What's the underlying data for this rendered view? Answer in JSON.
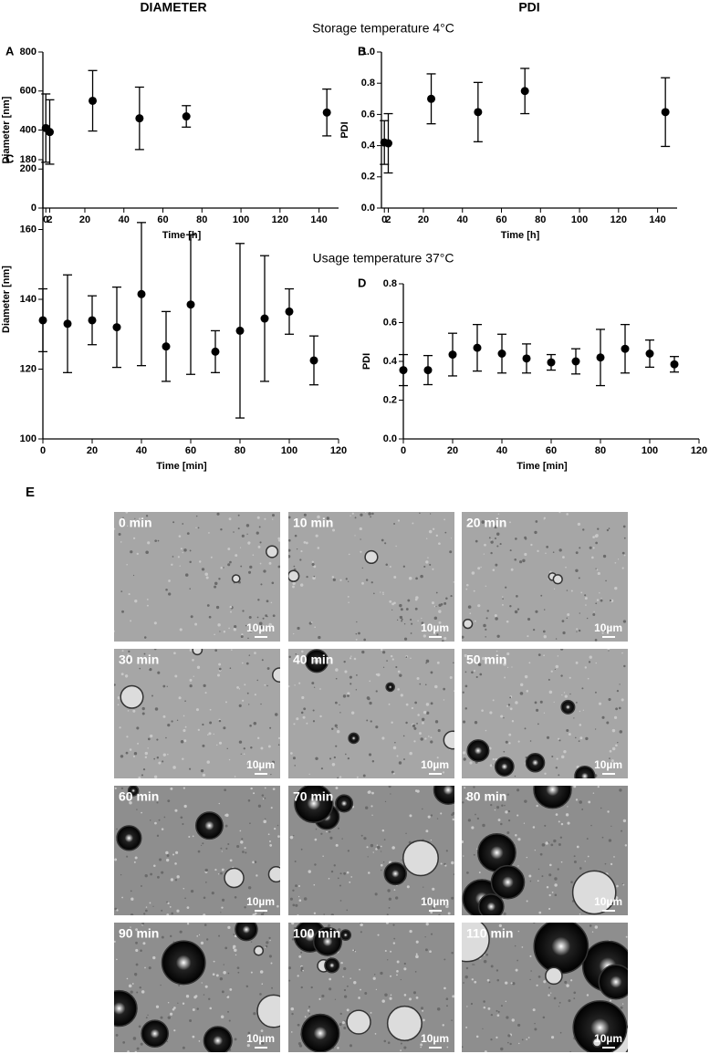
{
  "column_titles": [
    "DIAMETER",
    "PDI"
  ],
  "section_titles": [
    "Storage temperature 4°C",
    "Usage temperature 37°C"
  ],
  "chart_data": [
    {
      "type": "scatter",
      "panel": "A",
      "x_label": "Time [h]",
      "y_label": "Diameter [nm]",
      "xlim": [
        -1.5,
        150
      ],
      "xticks": [
        0,
        2,
        20,
        40,
        60,
        80,
        100,
        120,
        140
      ],
      "ylim": [
        0,
        800
      ],
      "yticks": [
        0,
        200,
        400,
        600,
        800
      ],
      "series": [
        {
          "color": "#000000",
          "x": [
            0,
            2,
            24,
            48,
            72,
            144
          ],
          "values": [
            410,
            390,
            550,
            460,
            470,
            490
          ],
          "errors": [
            175,
            165,
            155,
            160,
            55,
            120
          ]
        }
      ]
    },
    {
      "type": "scatter",
      "panel": "B",
      "x_label": "Time [h]",
      "y_label": "PDI",
      "xlim": [
        -1.5,
        150
      ],
      "xticks": [
        0,
        2,
        20,
        40,
        60,
        80,
        100,
        120,
        140
      ],
      "ylim": [
        0,
        1
      ],
      "yticks": [
        {
          "value": 0,
          "label": "0.0"
        },
        0.2,
        0.4,
        0.6,
        0.8,
        {
          "value": 1,
          "label": "1.0"
        }
      ],
      "series": [
        {
          "color": "#000000",
          "x": [
            0,
            2,
            24,
            48,
            72,
            144
          ],
          "values": [
            0.42,
            0.415,
            0.7,
            0.615,
            0.75,
            0.615
          ],
          "errors": [
            0.14,
            0.19,
            0.16,
            0.19,
            0.145,
            0.22
          ]
        }
      ]
    },
    {
      "type": "scatter",
      "panel": "C",
      "x_label": "Time [min]",
      "y_label": "Diameter [nm]",
      "xlim": [
        0,
        120
      ],
      "xticks": [
        0,
        20,
        40,
        60,
        80,
        100,
        120
      ],
      "ylim": [
        100,
        180
      ],
      "yticks": [
        100,
        120,
        140,
        160,
        180
      ],
      "series": [
        {
          "color": "#000000",
          "x": [
            0,
            10,
            20,
            30,
            40,
            50,
            60,
            70,
            80,
            90,
            100,
            110
          ],
          "values": [
            134,
            133,
            134,
            132,
            141.5,
            126.5,
            138.5,
            125,
            131,
            134.5,
            136.5,
            122.5
          ],
          "errors": [
            9,
            14,
            7,
            11.5,
            20.5,
            10,
            20,
            6,
            25,
            18,
            6.5,
            7
          ]
        }
      ]
    },
    {
      "type": "scatter",
      "panel": "D",
      "x_label": "Time [min]",
      "y_label": "PDI",
      "xlim": [
        0,
        120
      ],
      "xticks": [
        0,
        20,
        40,
        60,
        80,
        100,
        120
      ],
      "ylim": [
        0,
        0.8
      ],
      "yticks": [
        {
          "value": 0,
          "label": "0.0"
        },
        0.2,
        0.4,
        0.6,
        0.8
      ],
      "series": [
        {
          "color": "#000000",
          "x": [
            0,
            10,
            20,
            30,
            40,
            50,
            60,
            70,
            80,
            90,
            100,
            110
          ],
          "values": [
            0.355,
            0.355,
            0.435,
            0.47,
            0.44,
            0.415,
            0.395,
            0.4,
            0.42,
            0.465,
            0.44,
            0.385
          ],
          "errors": [
            0.08,
            0.075,
            0.11,
            0.12,
            0.1,
            0.075,
            0.04,
            0.065,
            0.145,
            0.125,
            0.07,
            0.04
          ]
        }
      ]
    }
  ],
  "panel_e": {
    "panel": "E",
    "scale_bar": "10µm",
    "images": [
      "0 min",
      "10 min",
      "20 min",
      "30 min",
      "40 min",
      "50 min",
      "60 min",
      "70 min",
      "80 min",
      "90 min",
      "100 min",
      "110 min"
    ]
  }
}
